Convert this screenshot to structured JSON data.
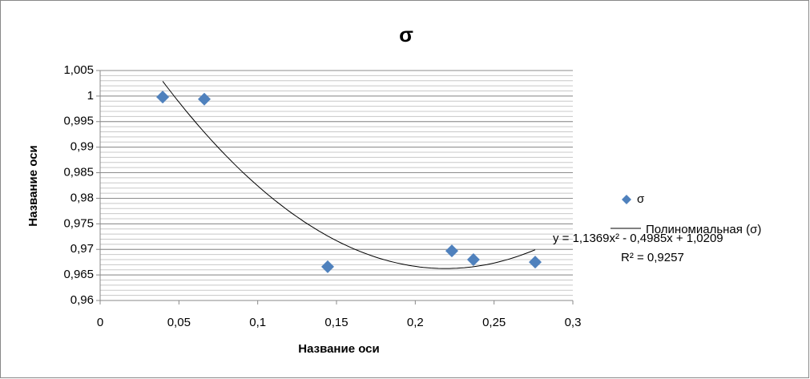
{
  "chart_data": {
    "type": "scatter",
    "title": "σ",
    "x_label": "Название оси",
    "y_label": "Название оси",
    "series": [
      {
        "name": "σ",
        "color": "#4f81bd",
        "x": [
          0.0397,
          0.0661,
          0.1444,
          0.2232,
          0.2369,
          0.2761
        ],
        "values": [
          0.9998,
          0.9994,
          0.9666,
          0.9697,
          0.968,
          0.9675
        ]
      }
    ],
    "trendline": {
      "name": "Полиномиальная (σ)",
      "equation": "y = 1,1369x² - 0,4985x + 1,0209",
      "r2_label": "R² = 0,9257",
      "coefficients": [
        1.1369,
        -0.4985,
        1.0209
      ],
      "color": "#000000"
    },
    "xlim": [
      0,
      0.3
    ],
    "xticks": [
      0,
      {
        "value": 0.05,
        "label": "0,05"
      },
      {
        "value": 0.1,
        "label": "0,1"
      },
      {
        "value": 0.15,
        "label": "0,15"
      },
      {
        "value": 0.2,
        "label": "0,2"
      },
      {
        "value": 0.25,
        "label": "0,25"
      },
      {
        "value": 0.3,
        "label": "0,3"
      }
    ],
    "ylim": [
      0.96,
      1.005
    ],
    "yticks": [
      {
        "value": 0.96,
        "label": "0,96"
      },
      {
        "value": 0.965,
        "label": "0,965"
      },
      {
        "value": 0.97,
        "label": "0,97"
      },
      {
        "value": 0.975,
        "label": "0,975"
      },
      {
        "value": 0.98,
        "label": "0,98"
      },
      {
        "value": 0.985,
        "label": "0,985"
      },
      {
        "value": 0.99,
        "label": "0,99"
      },
      {
        "value": 0.995,
        "label": "0,995"
      },
      1,
      {
        "value": 1.005,
        "label": "1,005"
      }
    ],
    "grid": true,
    "minor_grid_step": 0.001,
    "legend": "right"
  }
}
